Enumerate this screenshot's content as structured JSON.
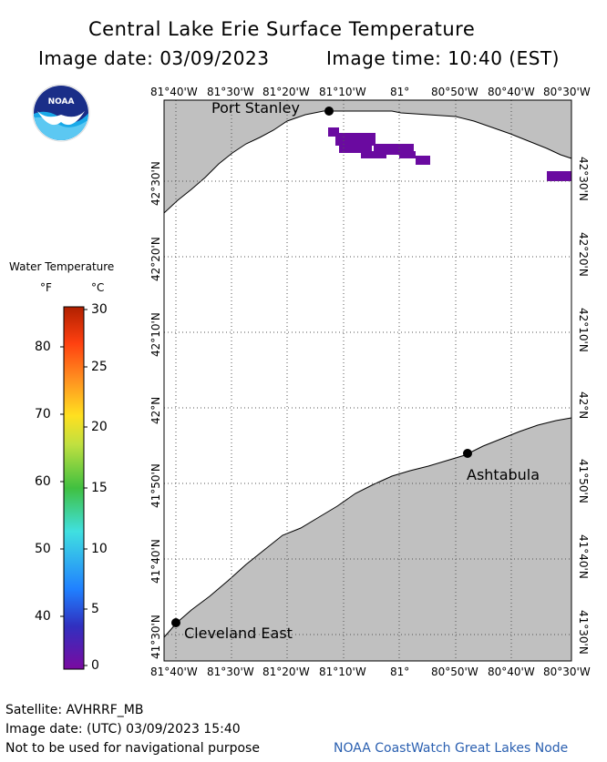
{
  "header": {
    "title": "Central Lake Erie Surface Temperature",
    "image_date_label": "Image date: 03/09/2023",
    "image_time_label": "Image time: 10:40 (EST)"
  },
  "logo": {
    "text": "NOAA",
    "icon": "noaa-logo"
  },
  "map": {
    "lon_ticks": [
      "81°40'W",
      "81°30'W",
      "81°20'W",
      "81°10'W",
      "81°",
      "80°50'W",
      "80°40'W",
      "80°30'W"
    ],
    "lat_ticks": [
      "42°30'N",
      "42°20'N",
      "42°10'N",
      "42°N",
      "41°50'N",
      "41°40'N",
      "41°30'N"
    ],
    "cities": [
      {
        "name": "Port Stanley"
      },
      {
        "name": "Ashtabula"
      },
      {
        "name": "Cleveland East"
      }
    ],
    "land_color": "#c0c0c0",
    "water_color": "#ffffff",
    "anomaly_color": "#6a0aa0"
  },
  "legend": {
    "title": "Water Temperature",
    "unit_f": "°F",
    "unit_c": "°C",
    "f_ticks": [
      "80",
      "70",
      "60",
      "50",
      "40"
    ],
    "c_ticks": [
      "30",
      "25",
      "20",
      "15",
      "10",
      "5",
      "0"
    ],
    "colors": [
      "#7a0aa0",
      "#3030c0",
      "#2080ff",
      "#40e0e0",
      "#40c040",
      "#c0e040",
      "#ffe020",
      "#ff9020",
      "#ff4010",
      "#b02000"
    ]
  },
  "footer": {
    "satellite": "Satellite: AVHRRF_MB",
    "utc_date": "Image date: (UTC) 03/09/2023  15:40",
    "disclaimer": "Not to be used for navigational purpose",
    "credit": "NOAA CoastWatch Great Lakes Node"
  }
}
